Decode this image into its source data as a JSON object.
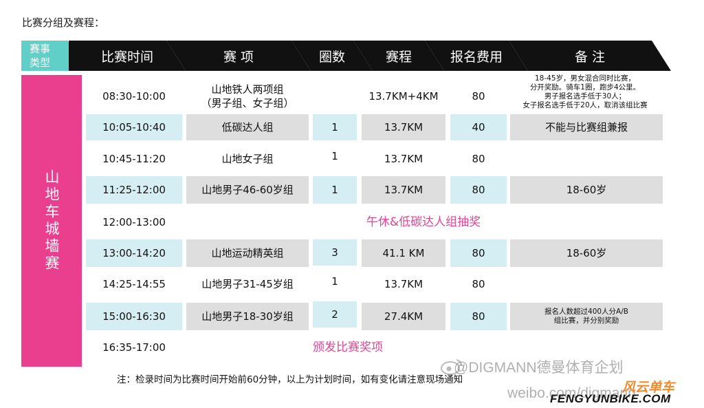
{
  "page_title": "比赛分组及赛程：",
  "header": {
    "type_label": "赛事\n类型",
    "columns": [
      "比赛时间",
      "赛 项",
      "圈数",
      "赛程",
      "报名费用",
      "备 注"
    ]
  },
  "category": "山地车城墙赛",
  "rows": [
    {
      "time": "08:30-10:00",
      "event": "山地铁人两项组\n（男子组、女子组）",
      "laps": "",
      "distance": "13.7KM+4KM",
      "fee": "80",
      "note": "18-45岁，男女混合同时比赛，\n分开奖励。骑车1圈，跑步4公里。\n男子报名选手低于30人；\n女子报名选手低于20人，取消该组比赛"
    },
    {
      "time": "10:05-10:40",
      "event": "低碳达人组",
      "laps": "1",
      "distance": "13.7KM",
      "fee": "40",
      "note": "不能与比赛组兼报"
    },
    {
      "time": "10:45-11:20",
      "event": "山地女子组",
      "laps": "1",
      "distance": "13.7KM",
      "fee": "80",
      "note": ""
    },
    {
      "time": "11:25-12:00",
      "event": "山地男子46-60岁组",
      "laps": "1",
      "distance": "13.7KM",
      "fee": "80",
      "note": "18-60岁"
    },
    {
      "time": "12:00-13:00",
      "span_text": "午休&低碳达人组抽奖"
    },
    {
      "time": "13:00-14:20",
      "event": "山地运动精英组",
      "laps": "3",
      "distance": "41.1 KM",
      "fee": "80",
      "note": "18-60岁"
    },
    {
      "time": "14:25-14:55",
      "event": "山地男子31-45岁组",
      "laps": "1",
      "distance": "13.7KM",
      "fee": "80",
      "note": ""
    },
    {
      "time": "15:00-16:30",
      "event": "山地男子18-30岁组",
      "laps": "2",
      "distance": "27.4KM",
      "fee": "80",
      "note": "报名人数超过400人分A/B\n组比赛，并分别奖励"
    },
    {
      "time": "16:35-17:00",
      "span_text": "颁发比赛奖项"
    }
  ],
  "footnote": "注：检录时间为比赛时间开始前60分钟，以上为计划时间，如有变化请注意现场通知",
  "watermark": {
    "weibo_handle": "@DIGMANN德曼体育企划",
    "weibo_site": "weibo.com/digmann",
    "brand_cn": "风云单车",
    "brand_en": "FENGYUNBIKE.COM"
  },
  "colors": {
    "accent_pink": "#ea3f8e",
    "header_teal": "#5fcfc7",
    "header_black": "#111111",
    "row_blue": "#d4eef3",
    "row_gray": "#dedede"
  }
}
